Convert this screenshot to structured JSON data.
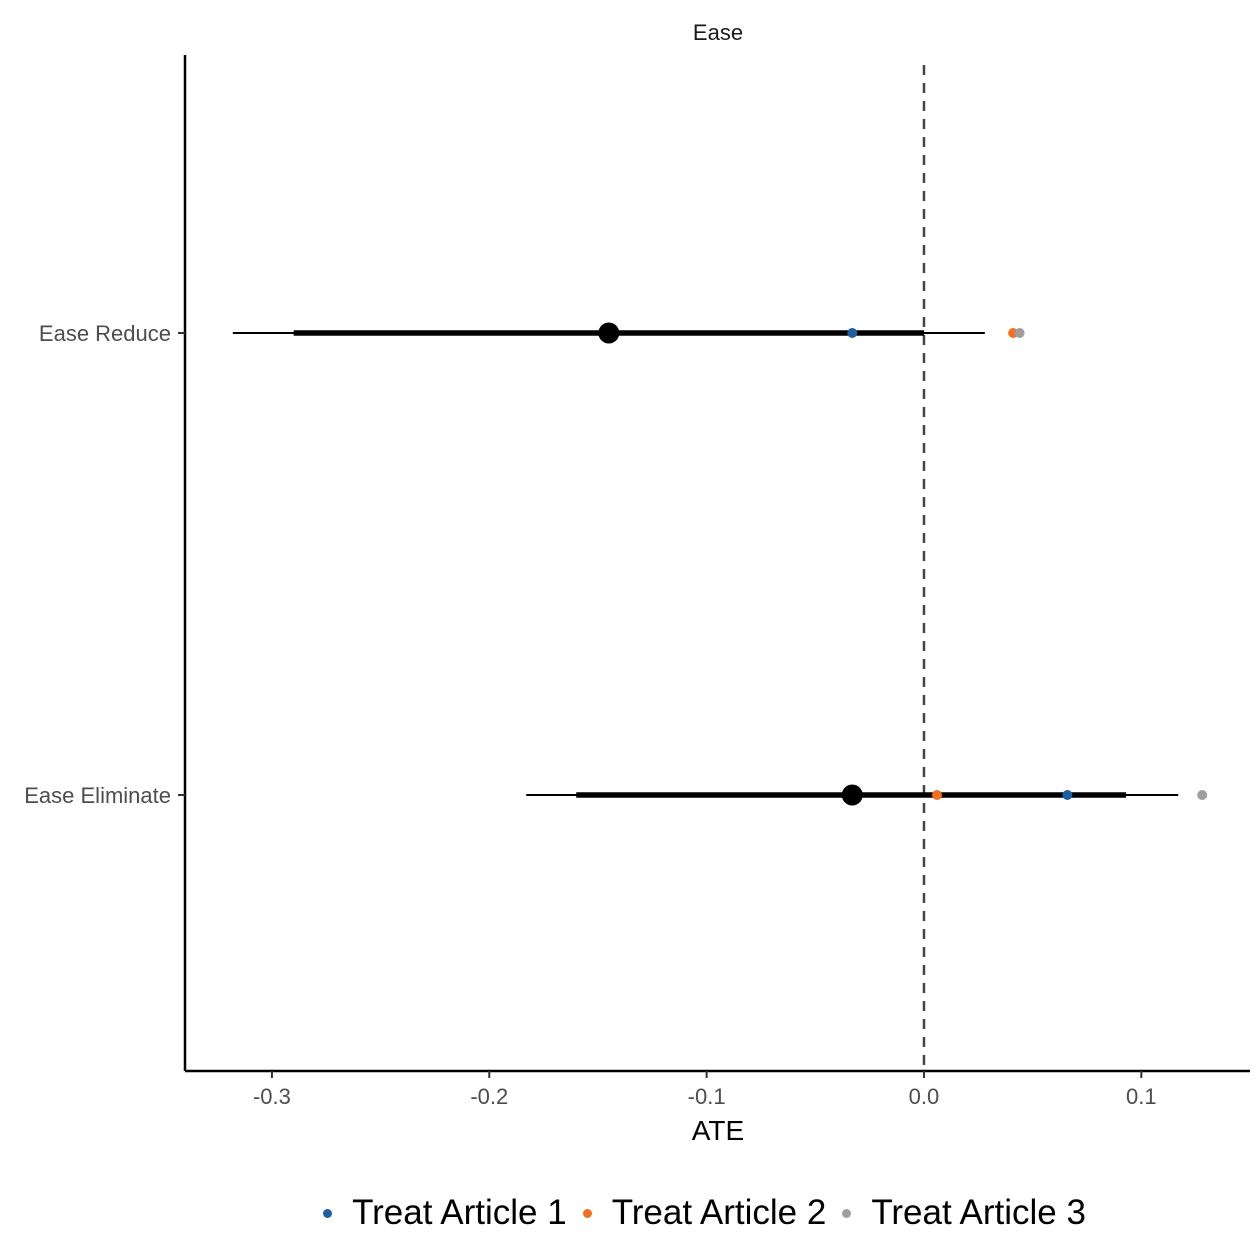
{
  "chart_data": {
    "type": "forest",
    "title": "Ease",
    "xlabel": "ATE",
    "ylabel": "",
    "xlim": [
      -0.34,
      0.15
    ],
    "xticks": [
      -0.3,
      -0.2,
      -0.1,
      0.0,
      0.1
    ],
    "xtick_labels": [
      "-0.3",
      "-0.2",
      "-0.1",
      "0.0",
      "0.1"
    ],
    "reference_line": 0.0,
    "grid": false,
    "legend_position": "bottom",
    "categories": [
      "Ease Reduce",
      "Ease Eliminate"
    ],
    "estimates": [
      {
        "category": "Ease Reduce",
        "ate": -0.145,
        "ci90": [
          -0.29,
          0.0
        ],
        "ci95": [
          -0.318,
          0.028
        ]
      },
      {
        "category": "Ease Eliminate",
        "ate": -0.033,
        "ci90": [
          -0.16,
          0.093
        ],
        "ci95": [
          -0.183,
          0.117
        ]
      }
    ],
    "series": [
      {
        "name": "Treat Article 1",
        "color": "#1f5fa0",
        "values": [
          -0.033,
          0.066
        ]
      },
      {
        "name": "Treat Article 2",
        "color": "#f07020",
        "values": [
          0.041,
          0.006
        ]
      },
      {
        "name": "Treat Article 3",
        "color": "#9e9e9e",
        "values": [
          0.044,
          0.128
        ]
      }
    ]
  }
}
